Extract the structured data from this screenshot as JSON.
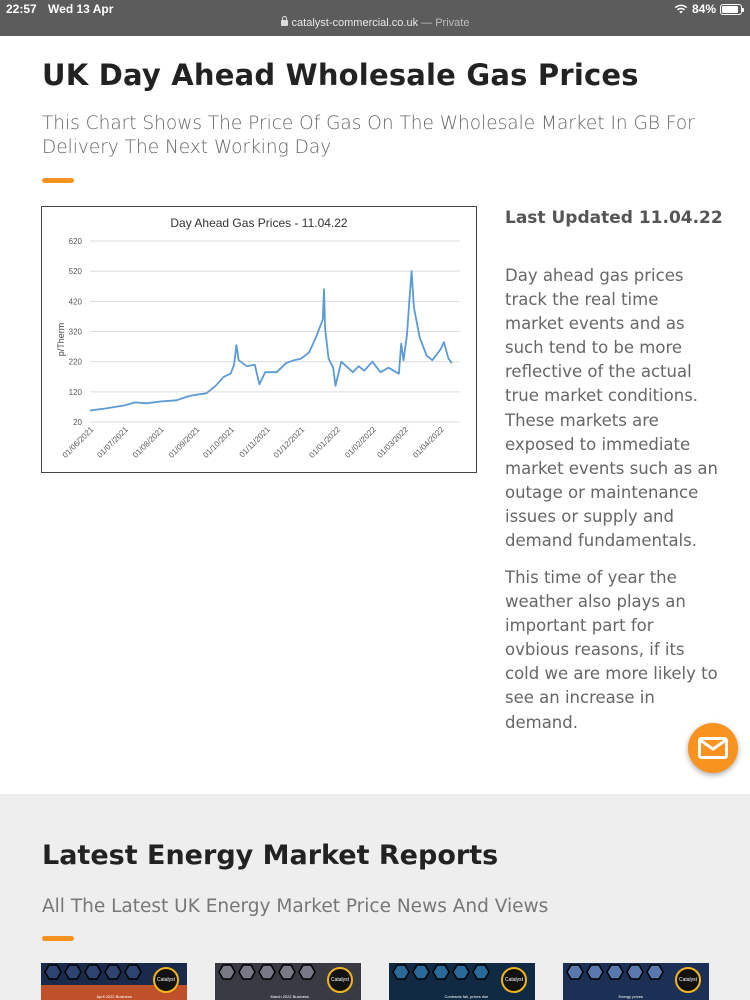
{
  "status_bar": {
    "time": "22:57",
    "date": "Wed 13 Apr",
    "battery": "84%"
  },
  "browser": {
    "domain": "catalyst-commercial.co.uk",
    "mode": "— Private"
  },
  "page": {
    "title": "UK Day Ahead Wholesale Gas Prices",
    "subtitle": "This Chart Shows The Price Of Gas On The Wholesale Market In GB For Delivery The Next Working Day",
    "accent_color": "#f7931e"
  },
  "sidebar": {
    "updated": "Last Updated 11.04.22",
    "paragraph1": "Day ahead gas prices track the real time market events and as such tend to be more reflective of the actual true market conditions.  These markets are exposed to immediate market events such as an outage or maintenance issues or supply and demand fundamentals.",
    "paragraph2": "This time of year the weather also plays an important part for ovbious reasons, if its cold we are more likely to see an increase in demand."
  },
  "chart_data": {
    "type": "line",
    "title": "Day Ahead Gas Prices - 11.04.22",
    "xlabel": "",
    "ylabel": "p/Therm",
    "ylim": [
      20,
      620
    ],
    "yticks": [
      "620",
      "520",
      "420",
      "320",
      "220",
      "120",
      "20"
    ],
    "xticks": [
      "01/06/2021",
      "01/07/2021",
      "01/08/2021",
      "01/09/2021",
      "01/10/2021",
      "01/11/2021",
      "01/12/2021",
      "01/01/2022",
      "01/02/2022",
      "01/03/2022",
      "01/04/2022"
    ],
    "grid": true,
    "line_color": "#5b9bd5",
    "series": [
      {
        "values": [
          [
            "2021-06-01",
            58
          ],
          [
            "2021-06-15",
            65
          ],
          [
            "2021-07-01",
            75
          ],
          [
            "2021-07-10",
            85
          ],
          [
            "2021-07-20",
            82
          ],
          [
            "2021-08-01",
            88
          ],
          [
            "2021-08-15",
            92
          ],
          [
            "2021-08-25",
            105
          ],
          [
            "2021-09-01",
            110
          ],
          [
            "2021-09-10",
            115
          ],
          [
            "2021-09-18",
            140
          ],
          [
            "2021-09-25",
            170
          ],
          [
            "2021-10-01",
            180
          ],
          [
            "2021-10-04",
            210
          ],
          [
            "2021-10-06",
            275
          ],
          [
            "2021-10-08",
            225
          ],
          [
            "2021-10-15",
            205
          ],
          [
            "2021-10-22",
            210
          ],
          [
            "2021-10-26",
            145
          ],
          [
            "2021-10-31",
            185
          ],
          [
            "2021-11-10",
            185
          ],
          [
            "2021-11-18",
            215
          ],
          [
            "2021-11-25",
            225
          ],
          [
            "2021-12-01",
            230
          ],
          [
            "2021-12-08",
            250
          ],
          [
            "2021-12-14",
            300
          ],
          [
            "2021-12-20",
            360
          ],
          [
            "2021-12-21",
            460
          ],
          [
            "2021-12-22",
            330
          ],
          [
            "2021-12-25",
            230
          ],
          [
            "2021-12-29",
            200
          ],
          [
            "2021-12-31",
            140
          ],
          [
            "2022-01-05",
            220
          ],
          [
            "2022-01-15",
            185
          ],
          [
            "2022-01-20",
            205
          ],
          [
            "2022-01-25",
            190
          ],
          [
            "2022-02-01",
            220
          ],
          [
            "2022-02-08",
            185
          ],
          [
            "2022-02-15",
            200
          ],
          [
            "2022-02-24",
            180
          ],
          [
            "2022-02-26",
            280
          ],
          [
            "2022-02-28",
            225
          ],
          [
            "2022-03-03",
            310
          ],
          [
            "2022-03-05",
            420
          ],
          [
            "2022-03-07",
            520
          ],
          [
            "2022-03-09",
            400
          ],
          [
            "2022-03-14",
            300
          ],
          [
            "2022-03-20",
            240
          ],
          [
            "2022-03-25",
            225
          ],
          [
            "2022-04-01",
            260
          ],
          [
            "2022-04-04",
            285
          ],
          [
            "2022-04-08",
            230
          ],
          [
            "2022-04-11",
            215
          ]
        ]
      }
    ]
  },
  "reports": {
    "title": "Latest Energy Market Reports",
    "subtitle": "All The Latest UK Energy Market Price News And Views",
    "cards": [
      {
        "logo": "Catalyst",
        "caption": "April 2022 Business"
      },
      {
        "logo": "Catalyst",
        "caption": "March 2022 Business"
      },
      {
        "logo": "Catalyst",
        "caption": "Contracts fall, prices rise"
      },
      {
        "logo": "Catalyst",
        "caption": "Energy prices"
      }
    ]
  },
  "icons": {
    "mail": "mail-icon",
    "wifi": "wifi-icon",
    "battery": "battery-icon",
    "lock": "lock-icon"
  }
}
